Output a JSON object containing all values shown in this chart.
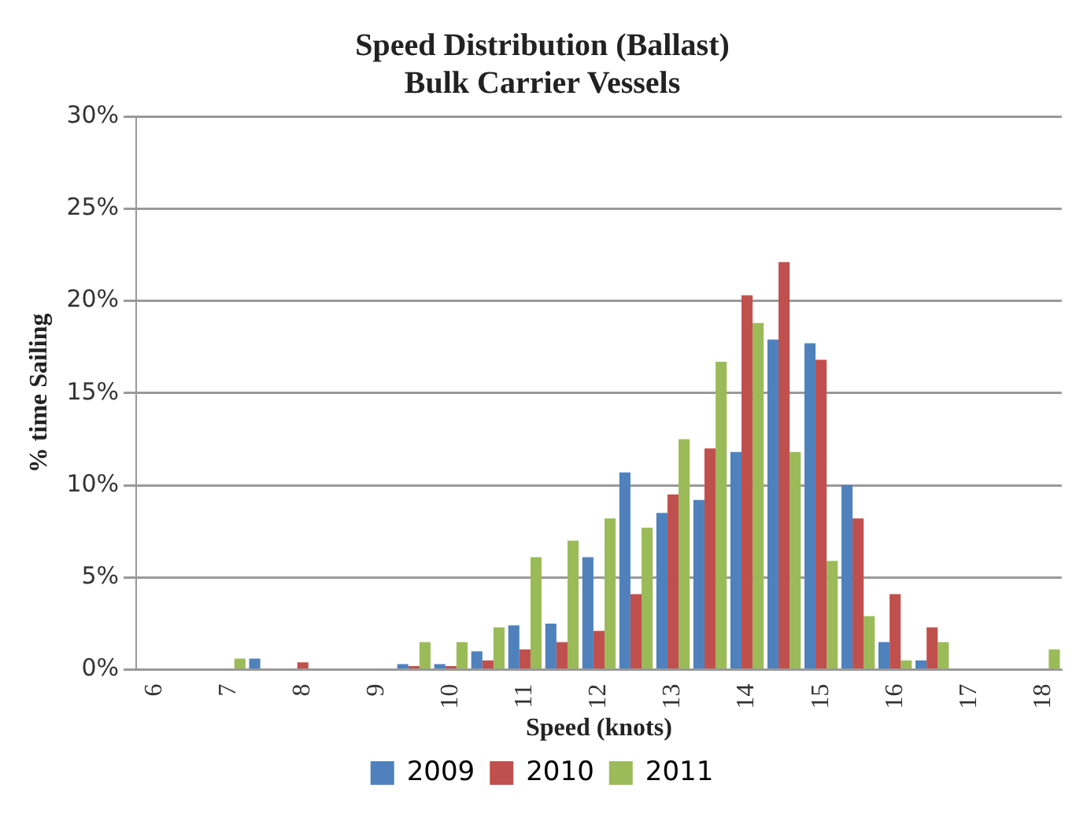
{
  "chart_data": {
    "type": "bar",
    "title": "Speed Distribution (Ballast)",
    "subtitle": "Bulk Carrier Vessels",
    "xlabel": "Speed (knots)",
    "ylabel": "% time Sailing",
    "categories": [
      "6",
      null,
      "7",
      null,
      "8",
      null,
      "9",
      null,
      "10",
      null,
      "11",
      null,
      "12",
      null,
      "13",
      null,
      "14",
      null,
      "15",
      null,
      "16",
      null,
      "17",
      null,
      "18"
    ],
    "series": [
      {
        "name": "2009",
        "color": "#4f81bd",
        "values": [
          null,
          null,
          null,
          0.6,
          null,
          null,
          null,
          0.3,
          0.3,
          1.0,
          2.4,
          2.5,
          6.1,
          10.7,
          8.5,
          9.2,
          11.8,
          17.9,
          17.7,
          10.0,
          1.5,
          0.5,
          null,
          null,
          null
        ]
      },
      {
        "name": "2010",
        "color": "#c0504d",
        "values": [
          null,
          null,
          null,
          null,
          0.4,
          null,
          null,
          0.2,
          0.2,
          0.5,
          1.1,
          1.5,
          2.1,
          4.1,
          9.5,
          12.0,
          20.3,
          22.1,
          16.8,
          8.2,
          4.1,
          2.3,
          null,
          null,
          null
        ]
      },
      {
        "name": "2011",
        "color": "#9bbb59",
        "values": [
          null,
          null,
          0.6,
          null,
          null,
          null,
          null,
          1.5,
          1.5,
          2.3,
          6.1,
          7.0,
          8.2,
          7.7,
          12.5,
          16.7,
          18.8,
          11.8,
          5.9,
          2.9,
          0.5,
          1.5,
          null,
          null,
          1.1
        ]
      }
    ],
    "ylim": [
      0,
      30
    ],
    "yticks": [
      {
        "value": 0,
        "label": "0%"
      },
      {
        "value": 5,
        "label": "5%"
      },
      {
        "value": 10,
        "label": "10%"
      },
      {
        "value": 15,
        "label": "15%"
      },
      {
        "value": 20,
        "label": "20%"
      },
      {
        "value": 25,
        "label": "25%"
      },
      {
        "value": 30,
        "label": "30%"
      }
    ],
    "grid": "y",
    "legend": "bottom"
  }
}
